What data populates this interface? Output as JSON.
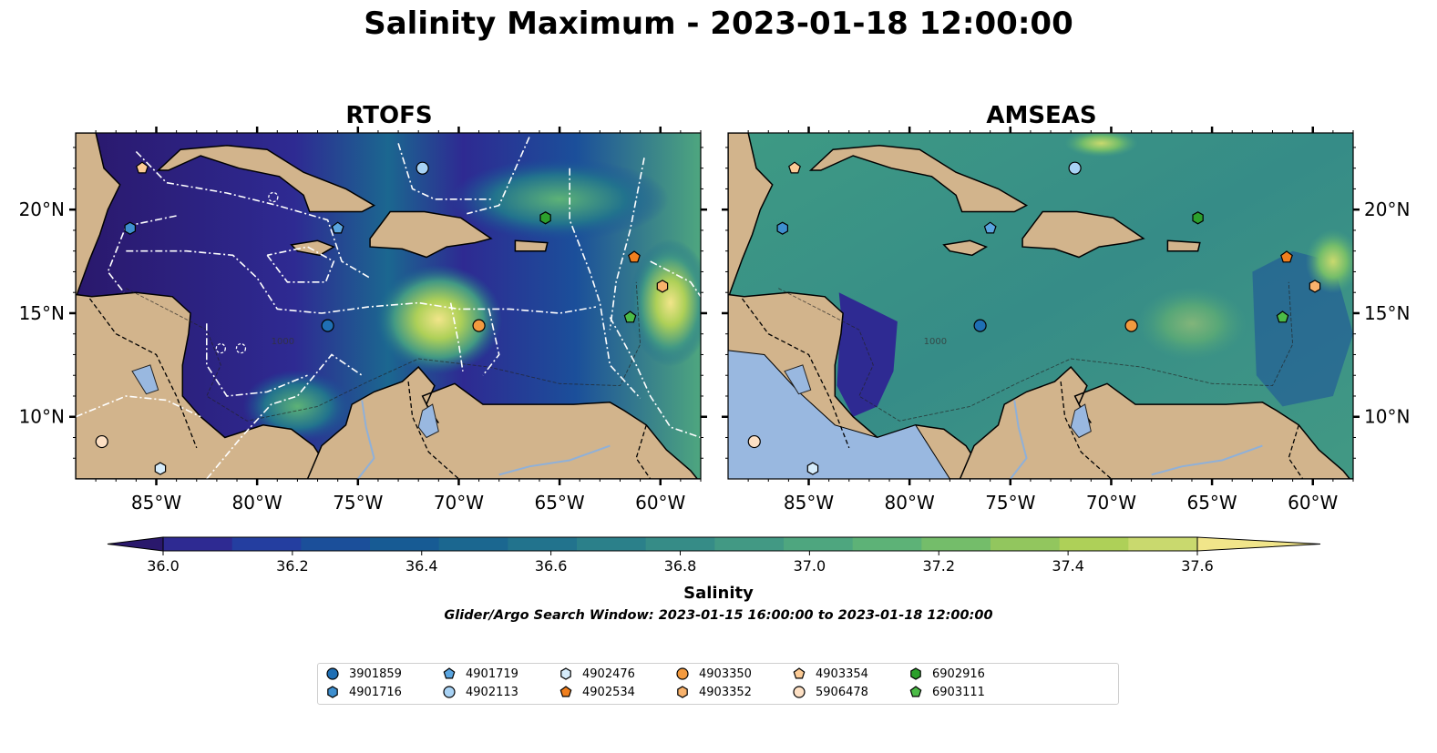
{
  "title": "Salinity Maximum - 2023-01-18 12:00:00",
  "panels": [
    {
      "title": "RTOFS",
      "style": "rtofs"
    },
    {
      "title": "AMSEAS",
      "style": "amseas"
    }
  ],
  "map": {
    "lon_range": [
      -89,
      -58
    ],
    "lat_range": [
      7,
      23.7
    ],
    "lon_ticks": [
      {
        "value": -85,
        "label": "85°W"
      },
      {
        "value": -80,
        "label": "80°W"
      },
      {
        "value": -75,
        "label": "75°W"
      },
      {
        "value": -70,
        "label": "70°W"
      },
      {
        "value": -65,
        "label": "65°W"
      },
      {
        "value": -60,
        "label": "60°W"
      }
    ],
    "lat_ticks": [
      {
        "value": 20,
        "label": "20°N"
      },
      {
        "value": 15,
        "label": "15°N"
      },
      {
        "value": 10,
        "label": "10°N"
      }
    ],
    "land_color": "#d2b48c",
    "lake_color": "#99b8e0",
    "contour_label": "1000"
  },
  "colorbar": {
    "label": "Salinity",
    "min": 36.0,
    "max": 37.6,
    "step": 0.1,
    "extend": "both",
    "colormap": "haline",
    "ticks": [
      "36.0",
      "36.2",
      "36.4",
      "36.6",
      "36.8",
      "37.0",
      "37.2",
      "37.4",
      "37.6"
    ],
    "colors": [
      "#2a186c",
      "#2e2a92",
      "#243ea0",
      "#1b4f9a",
      "#175b94",
      "#1b6790",
      "#22738d",
      "#2b808a",
      "#368c87",
      "#429984",
      "#4ea67f",
      "#5db277",
      "#74bd6a",
      "#92c65e",
      "#aed058",
      "#c9d96e",
      "#f1e58a"
    ]
  },
  "search_window": "Glider/Argo Search Window: 2023-01-15 16:00:00 to 2023-01-18 12:00:00",
  "platforms": [
    {
      "id": "3901859",
      "marker": "circle",
      "color": "#1f6fb4",
      "lon": -76.5,
      "lat": 14.4
    },
    {
      "id": "4901716",
      "marker": "hexagon",
      "color": "#3e8fcf",
      "lon": -86.3,
      "lat": 19.1
    },
    {
      "id": "4901719",
      "marker": "pentagon",
      "color": "#5aa5e0",
      "lon": -76.0,
      "lat": 19.1
    },
    {
      "id": "4902113",
      "marker": "circle",
      "color": "#a8d2f4",
      "lon": -71.8,
      "lat": 22.0
    },
    {
      "id": "4902476",
      "marker": "hexagon",
      "color": "#d6ecfb",
      "lon": -84.8,
      "lat": 7.5
    },
    {
      "id": "4902534",
      "marker": "pentagon",
      "color": "#f07f1e",
      "lon": -61.3,
      "lat": 17.7
    },
    {
      "id": "4903350",
      "marker": "circle",
      "color": "#f39a3f",
      "lon": -69.0,
      "lat": 14.4
    },
    {
      "id": "4903352",
      "marker": "hexagon",
      "color": "#f8b26c",
      "lon": -59.9,
      "lat": 16.3
    },
    {
      "id": "4903354",
      "marker": "pentagon",
      "color": "#fccb96",
      "lon": -85.7,
      "lat": 22.0
    },
    {
      "id": "5906478",
      "marker": "circle",
      "color": "#fde0c4",
      "lon": -87.7,
      "lat": 8.8
    },
    {
      "id": "6902916",
      "marker": "hexagon",
      "color": "#2ca02c",
      "lon": -65.7,
      "lat": 19.6
    },
    {
      "id": "6903111",
      "marker": "pentagon",
      "color": "#4cbb47",
      "lon": -61.5,
      "lat": 14.8
    }
  ]
}
